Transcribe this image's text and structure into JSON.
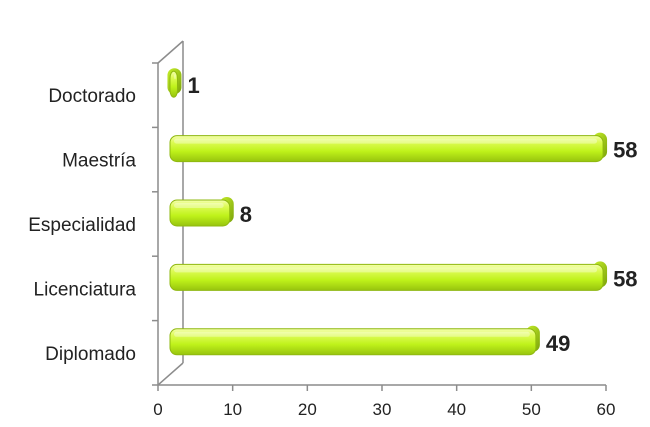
{
  "chart_data": {
    "type": "bar",
    "orientation": "horizontal",
    "categories": [
      "Doctorado",
      "Maestría",
      "Especialidad",
      "Licenciatura",
      "Diplomado"
    ],
    "values": [
      1,
      58,
      8,
      58,
      49
    ],
    "data_labels": [
      "1",
      "58",
      "8",
      "58",
      "49"
    ],
    "xlim": [
      0,
      60
    ],
    "x_ticks": [
      "0",
      "10",
      "20",
      "30",
      "40",
      "50",
      "60"
    ],
    "title": "",
    "xlabel": "",
    "ylabel": "",
    "bar_color": "#bff21a",
    "bar_edge_color": "#8fb810",
    "grid": false,
    "legend": "none"
  }
}
